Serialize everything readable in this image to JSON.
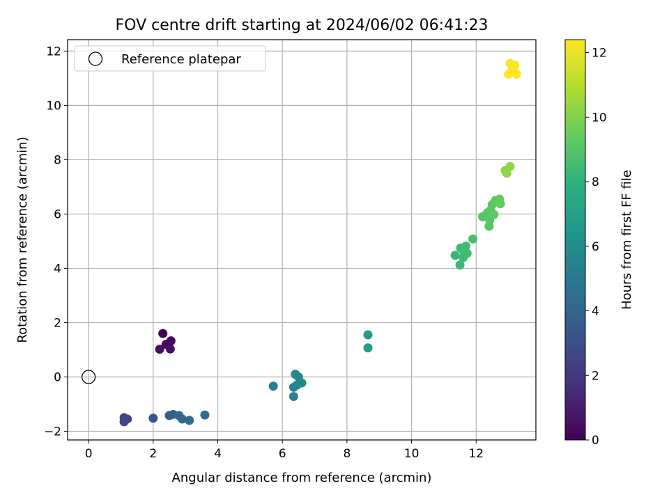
{
  "chart_data": {
    "type": "scatter",
    "title": "FOV centre drift starting at 2024/06/02 06:41:23",
    "xlabel": "Angular distance from reference (arcmin)",
    "ylabel": "Rotation from reference (arcmin)",
    "xlim": [
      -0.65,
      13.85
    ],
    "ylim": [
      -2.32,
      12.42
    ],
    "xticks": [
      0,
      2,
      4,
      6,
      8,
      10,
      12
    ],
    "yticks": [
      -2,
      0,
      2,
      4,
      6,
      8,
      10,
      12
    ],
    "grid": true,
    "legend": {
      "placement": "top-left",
      "label": "Reference platepar"
    },
    "reference_point": {
      "x": 0,
      "y": 0
    },
    "colorbar": {
      "label": "Hours from first FF file",
      "colormap": "viridis",
      "range": [
        0,
        12.4
      ],
      "ticks": [
        0,
        2,
        4,
        6,
        8,
        10,
        12
      ]
    },
    "points": [
      {
        "x": 2.3,
        "y": 1.6,
        "hours": 0.0
      },
      {
        "x": 2.55,
        "y": 1.33,
        "hours": 0.2
      },
      {
        "x": 2.4,
        "y": 1.2,
        "hours": 0.3
      },
      {
        "x": 2.2,
        "y": 1.02,
        "hours": 0.4
      },
      {
        "x": 2.53,
        "y": 1.03,
        "hours": 0.6
      },
      {
        "x": 1.1,
        "y": -1.5,
        "hours": 2.5
      },
      {
        "x": 1.2,
        "y": -1.55,
        "hours": 2.6
      },
      {
        "x": 1.1,
        "y": -1.65,
        "hours": 2.7
      },
      {
        "x": 2.0,
        "y": -1.52,
        "hours": 3.2
      },
      {
        "x": 2.5,
        "y": -1.42,
        "hours": 3.7
      },
      {
        "x": 2.62,
        "y": -1.38,
        "hours": 3.8
      },
      {
        "x": 2.8,
        "y": -1.42,
        "hours": 4.0
      },
      {
        "x": 2.9,
        "y": -1.55,
        "hours": 4.2
      },
      {
        "x": 3.12,
        "y": -1.6,
        "hours": 4.4
      },
      {
        "x": 3.6,
        "y": -1.4,
        "hours": 4.6
      },
      {
        "x": 5.72,
        "y": -0.34,
        "hours": 5.2
      },
      {
        "x": 6.35,
        "y": -0.72,
        "hours": 5.4
      },
      {
        "x": 6.35,
        "y": -0.38,
        "hours": 5.5
      },
      {
        "x": 6.45,
        "y": -0.3,
        "hours": 5.6
      },
      {
        "x": 6.4,
        "y": 0.1,
        "hours": 5.7
      },
      {
        "x": 6.5,
        "y": 0.0,
        "hours": 5.8
      },
      {
        "x": 6.6,
        "y": -0.22,
        "hours": 5.9
      },
      {
        "x": 8.65,
        "y": 1.55,
        "hours": 6.8
      },
      {
        "x": 8.65,
        "y": 1.07,
        "hours": 6.9
      },
      {
        "x": 11.35,
        "y": 4.48,
        "hours": 8.2
      },
      {
        "x": 11.5,
        "y": 4.12,
        "hours": 8.3
      },
      {
        "x": 11.52,
        "y": 4.75,
        "hours": 8.3
      },
      {
        "x": 11.6,
        "y": 4.4,
        "hours": 8.4
      },
      {
        "x": 11.62,
        "y": 4.62,
        "hours": 8.4
      },
      {
        "x": 11.68,
        "y": 4.82,
        "hours": 8.5
      },
      {
        "x": 11.72,
        "y": 4.55,
        "hours": 8.5
      },
      {
        "x": 11.9,
        "y": 5.08,
        "hours": 8.7
      },
      {
        "x": 12.2,
        "y": 5.9,
        "hours": 9.0
      },
      {
        "x": 12.35,
        "y": 6.05,
        "hours": 9.1
      },
      {
        "x": 12.4,
        "y": 5.55,
        "hours": 9.1
      },
      {
        "x": 12.42,
        "y": 5.78,
        "hours": 9.1
      },
      {
        "x": 12.45,
        "y": 6.15,
        "hours": 9.2
      },
      {
        "x": 12.5,
        "y": 6.35,
        "hours": 9.2
      },
      {
        "x": 12.55,
        "y": 5.98,
        "hours": 9.3
      },
      {
        "x": 12.6,
        "y": 6.5,
        "hours": 9.3
      },
      {
        "x": 12.72,
        "y": 6.55,
        "hours": 9.4
      },
      {
        "x": 12.75,
        "y": 6.38,
        "hours": 9.4
      },
      {
        "x": 12.9,
        "y": 7.6,
        "hours": 10.2
      },
      {
        "x": 12.95,
        "y": 7.5,
        "hours": 10.3
      },
      {
        "x": 13.05,
        "y": 7.75,
        "hours": 10.3
      },
      {
        "x": 13.05,
        "y": 11.55,
        "hours": 12.3
      },
      {
        "x": 13.2,
        "y": 11.48,
        "hours": 12.3
      },
      {
        "x": 13.0,
        "y": 11.15,
        "hours": 12.4
      },
      {
        "x": 13.1,
        "y": 11.28,
        "hours": 12.4
      },
      {
        "x": 13.25,
        "y": 11.15,
        "hours": 12.4
      }
    ]
  }
}
